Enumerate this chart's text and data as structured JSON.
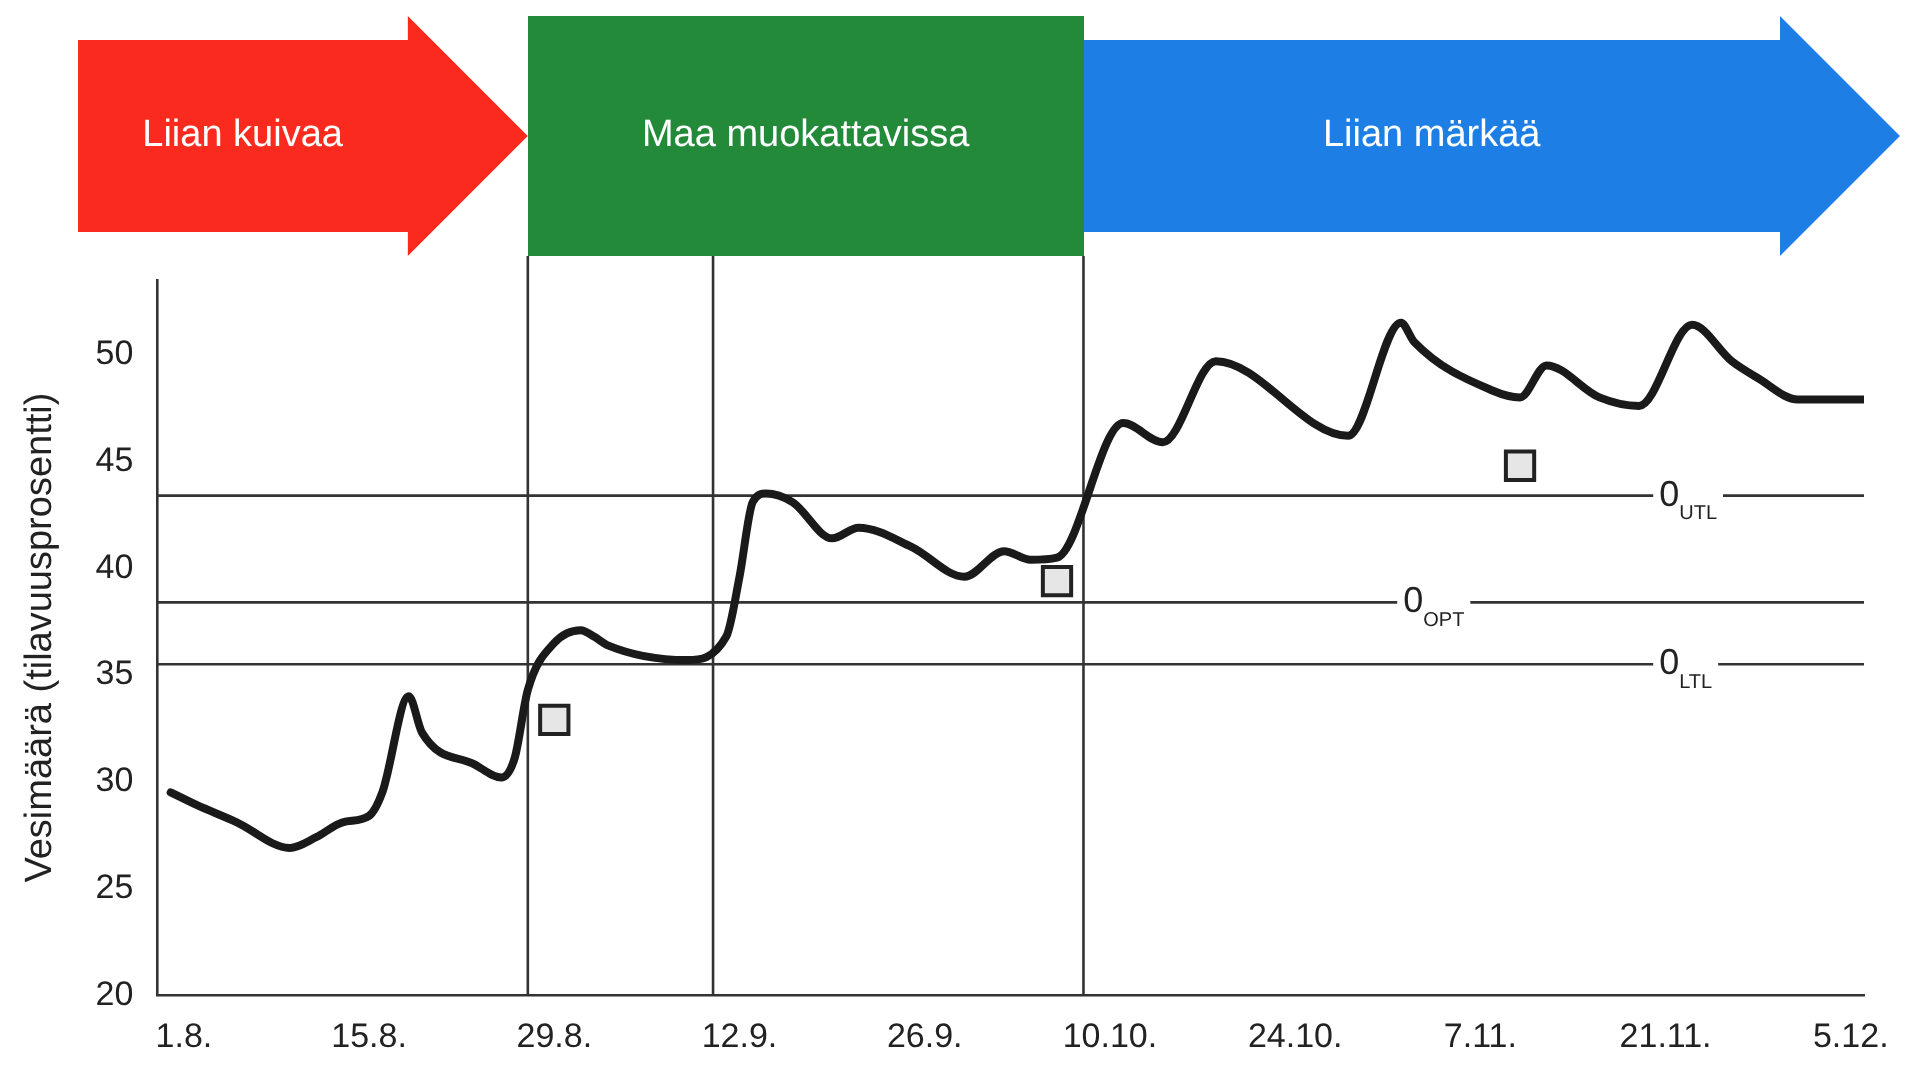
{
  "chart_data": {
    "type": "line",
    "ylabel": "Vesimäärä (tilavuusprosentti)",
    "xlim": [
      "--07-30",
      "--12-06"
    ],
    "xticks": [
      {
        "value": "--08-01",
        "label": "1.8."
      },
      {
        "value": "--08-15",
        "label": "15.8."
      },
      {
        "value": "--08-29",
        "label": "29.8."
      },
      {
        "value": "--09-12",
        "label": "12.9."
      },
      {
        "value": "--09-26",
        "label": "26.9."
      },
      {
        "value": "--10-10",
        "label": "10.10."
      },
      {
        "value": "--10-24",
        "label": "24.10."
      },
      {
        "value": "--11-07",
        "label": "7.11."
      },
      {
        "value": "--11-21",
        "label": "21.11."
      },
      {
        "value": "--12-05",
        "label": "5.12."
      }
    ],
    "ylim": [
      20,
      53.5
    ],
    "yticks": [
      20,
      25,
      30,
      35,
      40,
      45,
      50
    ],
    "grid": false,
    "legend": false,
    "series": [
      {
        "type": "line",
        "color": "#1a1a1a",
        "marker": "none",
        "line_style": "solid",
        "x": [
          "--07-31",
          "--08-02",
          "--08-05",
          "--08-09",
          "--08-11",
          "--08-13",
          "--08-15",
          "--08-16",
          "--08-18",
          "--08-19",
          "--08-23",
          "--08-25",
          "--08-26",
          "--08-27",
          "--08-29",
          "--08-31",
          "--09-01",
          "--09-02",
          "--09-08",
          "--09-11",
          "--09-12",
          "--09-13",
          "--09-14",
          "--09-16",
          "--09-19",
          "--09-21",
          "--09-25",
          "--09-29",
          "--10-02",
          "--10-04",
          "--10-06",
          "--10-11",
          "--10-14",
          "--10-18",
          "--10-28",
          "--11-01",
          "--11-02",
          "--11-08",
          "--11-10",
          "--11-12",
          "--11-16",
          "--11-19",
          "--11-23",
          "--11-26",
          "--11-28",
          "--12-01",
          "--12-06"
        ],
        "values": [
          29.5,
          28.9,
          28.1,
          26.9,
          27.4,
          28.1,
          28.4,
          29.5,
          34.0,
          32.3,
          30.8,
          30.2,
          31.1,
          34.3,
          36.5,
          37.1,
          36.8,
          36.4,
          35.7,
          36.8,
          39.6,
          43.1,
          43.5,
          43.1,
          41.4,
          41.9,
          41.0,
          39.6,
          40.8,
          40.4,
          40.5,
          46.8,
          45.9,
          49.7,
          46.2,
          51.5,
          50.6,
          48.3,
          48.0,
          49.5,
          48.0,
          47.6,
          51.4,
          49.7,
          48.9,
          47.9,
          47.9
        ]
      },
      {
        "type": "scatter",
        "color": "#e6e6e6",
        "marker": "square",
        "x": [
          "--08-29",
          "--10-06",
          "--11-10"
        ],
        "values": [
          32.9,
          39.4,
          44.8
        ]
      }
    ],
    "ref_lines": [
      {
        "axis": "y",
        "value": 43.4,
        "label": "0$_{UTL}$",
        "color": "#333333"
      },
      {
        "axis": "y",
        "value": 38.4,
        "label": "0$_{OPT}$",
        "color": "#333333"
      },
      {
        "axis": "y",
        "value": 35.5,
        "label": "0$_{LTL}$",
        "color": "#333333"
      },
      {
        "axis": "x",
        "value": "--08-27",
        "color": "#333333"
      },
      {
        "axis": "x",
        "value": "--09-10",
        "color": "#333333"
      },
      {
        "axis": "x",
        "value": "--10-08",
        "color": "#333333"
      }
    ],
    "annotations": [
      "Liian kuivaa",
      "Maa muokattavissa",
      "Liian märkää"
    ]
  }
}
